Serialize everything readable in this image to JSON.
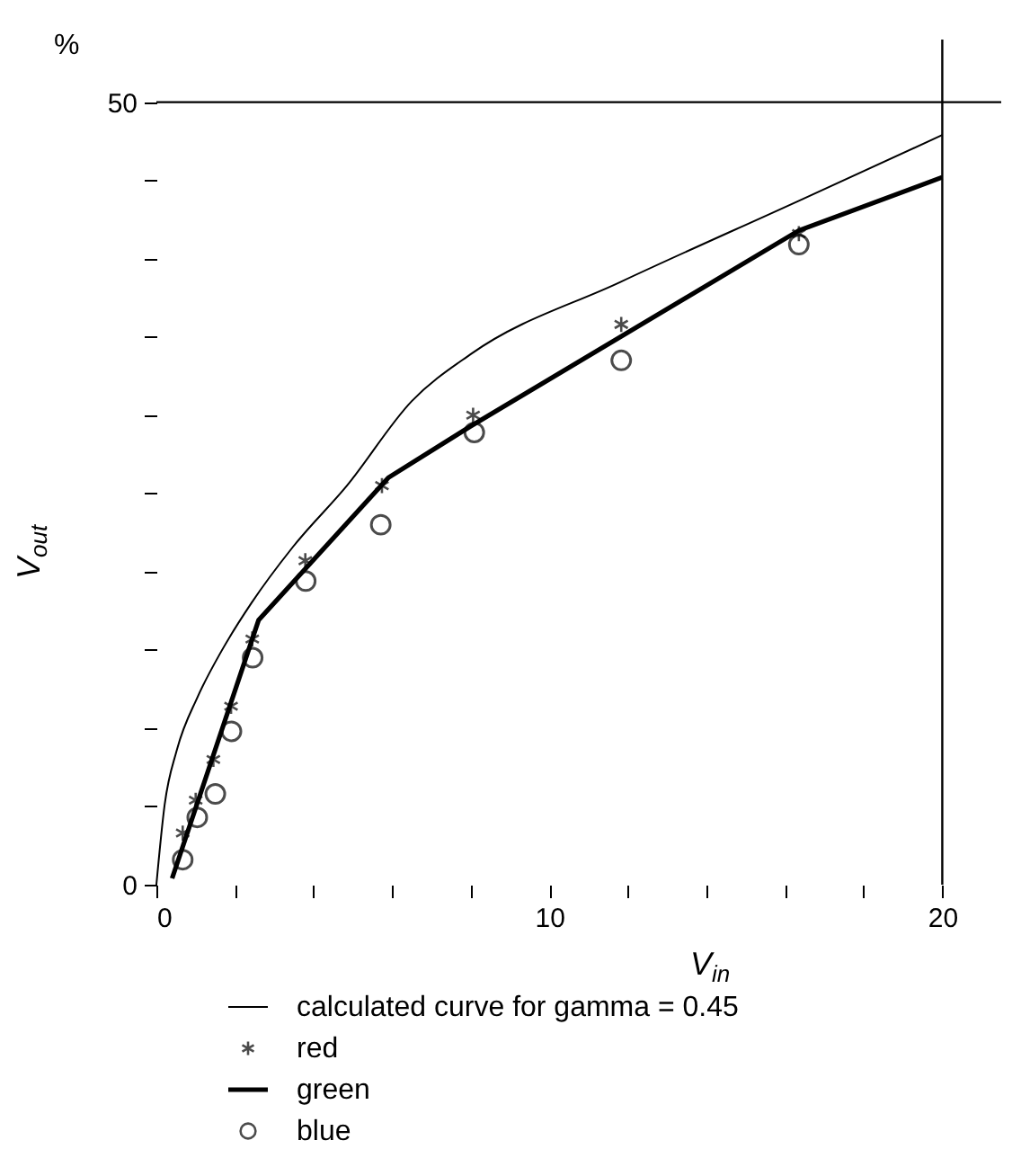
{
  "chart_data": {
    "type": "line",
    "xlabel": "V$_{in}$",
    "ylabel": "V$_{out}$",
    "annotations": [
      "%"
    ],
    "xlim": [
      0,
      21.5
    ],
    "ylim": [
      0,
      54
    ],
    "xticks": [
      0,
      {
        "value": 2,
        "label": null
      },
      {
        "value": 4,
        "label": null
      },
      {
        "value": 6,
        "label": null
      },
      {
        "value": 8,
        "label": null
      },
      10,
      {
        "value": 12,
        "label": null
      },
      {
        "value": 14,
        "label": null
      },
      {
        "value": 16,
        "label": null
      },
      {
        "value": 18,
        "label": null
      },
      20
    ],
    "yticks": [
      0,
      {
        "value": 5,
        "label": null
      },
      {
        "value": 10,
        "label": null
      },
      {
        "value": 15,
        "label": null
      },
      {
        "value": 20,
        "label": null
      },
      {
        "value": 25,
        "label": null
      },
      {
        "value": 30,
        "label": null
      },
      {
        "value": 35,
        "label": null
      },
      {
        "value": 40,
        "label": null
      },
      {
        "value": 45,
        "label": null
      },
      50
    ],
    "ref_lines": [
      {
        "axis": "y",
        "value": 50,
        "color": "#000000"
      },
      {
        "axis": "x",
        "value": 20,
        "color": "#000000"
      }
    ],
    "grid": false,
    "legend": "bottom",
    "series": [
      {
        "name": "calculated curve for gamma = 0.45",
        "color": "#000000",
        "marker": "none",
        "x": [
          0,
          0.21,
          0.52,
          1.05,
          1.65,
          2.42,
          3.48,
          4.85,
          6.5,
          8.0,
          11.8,
          16.35,
          20.0
        ],
        "values": [
          0,
          5.1,
          8.6,
          12.0,
          14.9,
          18.0,
          21.6,
          25.5,
          30.9,
          33.9,
          38.5,
          43.7,
          47.9
        ]
      },
      {
        "name": "red",
        "type": "scatter",
        "color": "#000000",
        "marker": "cross",
        "x": [
          0.67,
          1.0,
          1.45,
          1.9,
          2.44,
          3.79,
          5.74,
          8.06,
          11.83,
          16.35
        ],
        "values": [
          3.3,
          5.4,
          8.0,
          11.4,
          15.7,
          20.7,
          25.5,
          30.0,
          35.8,
          41.6
        ]
      },
      {
        "name": "green",
        "color": "#000000",
        "marker": "none",
        "x": [
          0.4,
          2.6,
          5.9,
          8.0,
          16.35,
          20.0
        ],
        "values": [
          0.4,
          16.9,
          26.0,
          29.3,
          41.8,
          45.2
        ]
      },
      {
        "name": "blue",
        "type": "scatter",
        "color": "#000000",
        "marker": "circle",
        "x": [
          0.67,
          1.04,
          1.5,
          1.91,
          2.45,
          3.8,
          5.71,
          8.09,
          11.83,
          16.35
        ],
        "values": [
          1.6,
          4.3,
          5.8,
          9.8,
          14.5,
          19.4,
          23.0,
          28.9,
          33.5,
          40.9
        ]
      }
    ]
  }
}
